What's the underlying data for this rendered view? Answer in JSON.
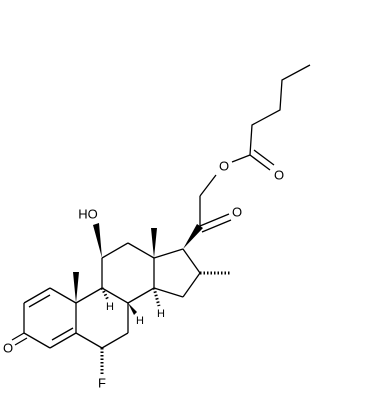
{
  "atom_labels": [
    "O",
    "O",
    "O",
    "HO",
    "H",
    "H",
    "H",
    "O",
    "F"
  ]
}
